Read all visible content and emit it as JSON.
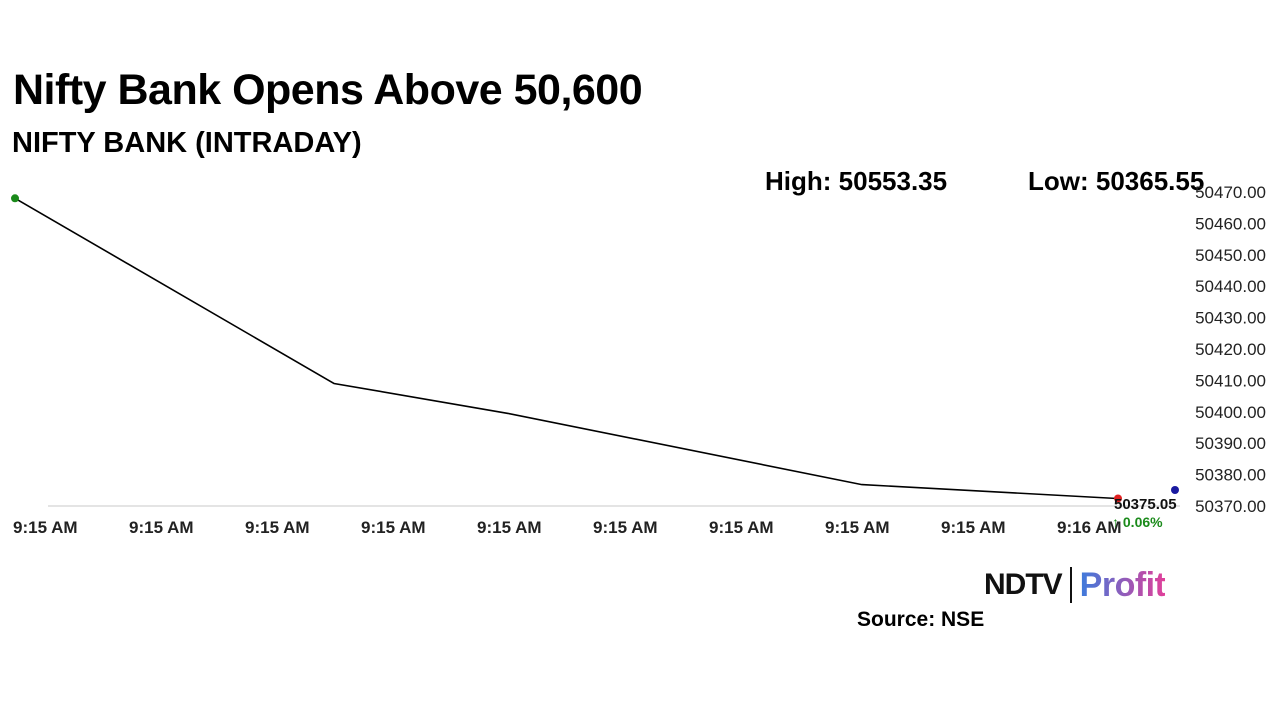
{
  "header": {
    "title": "Nifty Bank Opens Above 50,600",
    "subtitle": "NIFTY BANK (INTRADAY)"
  },
  "stats": {
    "high": "High: 50553.35",
    "low": "Low: 50365.55"
  },
  "chart_data": {
    "type": "line",
    "title": "NIFTY BANK (INTRADAY)",
    "xlabel": "",
    "ylabel": "",
    "ylim": [
      50370,
      50470
    ],
    "y_ticks": [
      "50370.00",
      "50380.00",
      "50390.00",
      "50400.00",
      "50410.00",
      "50420.00",
      "50430.00",
      "50440.00",
      "50450.00",
      "50460.00",
      "50470.00"
    ],
    "x_tick_labels": [
      "9:15 AM",
      "9:15 AM",
      "9:15 AM",
      "9:15 AM",
      "9:15 AM",
      "9:15 AM",
      "9:15 AM",
      "9:15 AM",
      "9:15 AM",
      "9:16 AM"
    ],
    "x": [
      0,
      2.75,
      4.25,
      7.3,
      9.5
    ],
    "values": [
      50468.0,
      50409.0,
      50399.5,
      50376.8,
      50372.4
    ],
    "last_value": "50375.05",
    "change": "0.06%",
    "grid": false,
    "colors": {
      "line": "#000000",
      "start_marker": "#1a8a1a",
      "end_marker": "#e02020",
      "extra_marker": "#1a1aa0",
      "change_up": "#1a8a1a",
      "axis": "#c8c8c8"
    }
  },
  "brand": {
    "ndtv": "NDTV",
    "profit": "Profit",
    "profit_color_start": "#3d7bdc",
    "profit_color_end": "#e0409a"
  },
  "footer": {
    "source": "Source: NSE"
  }
}
